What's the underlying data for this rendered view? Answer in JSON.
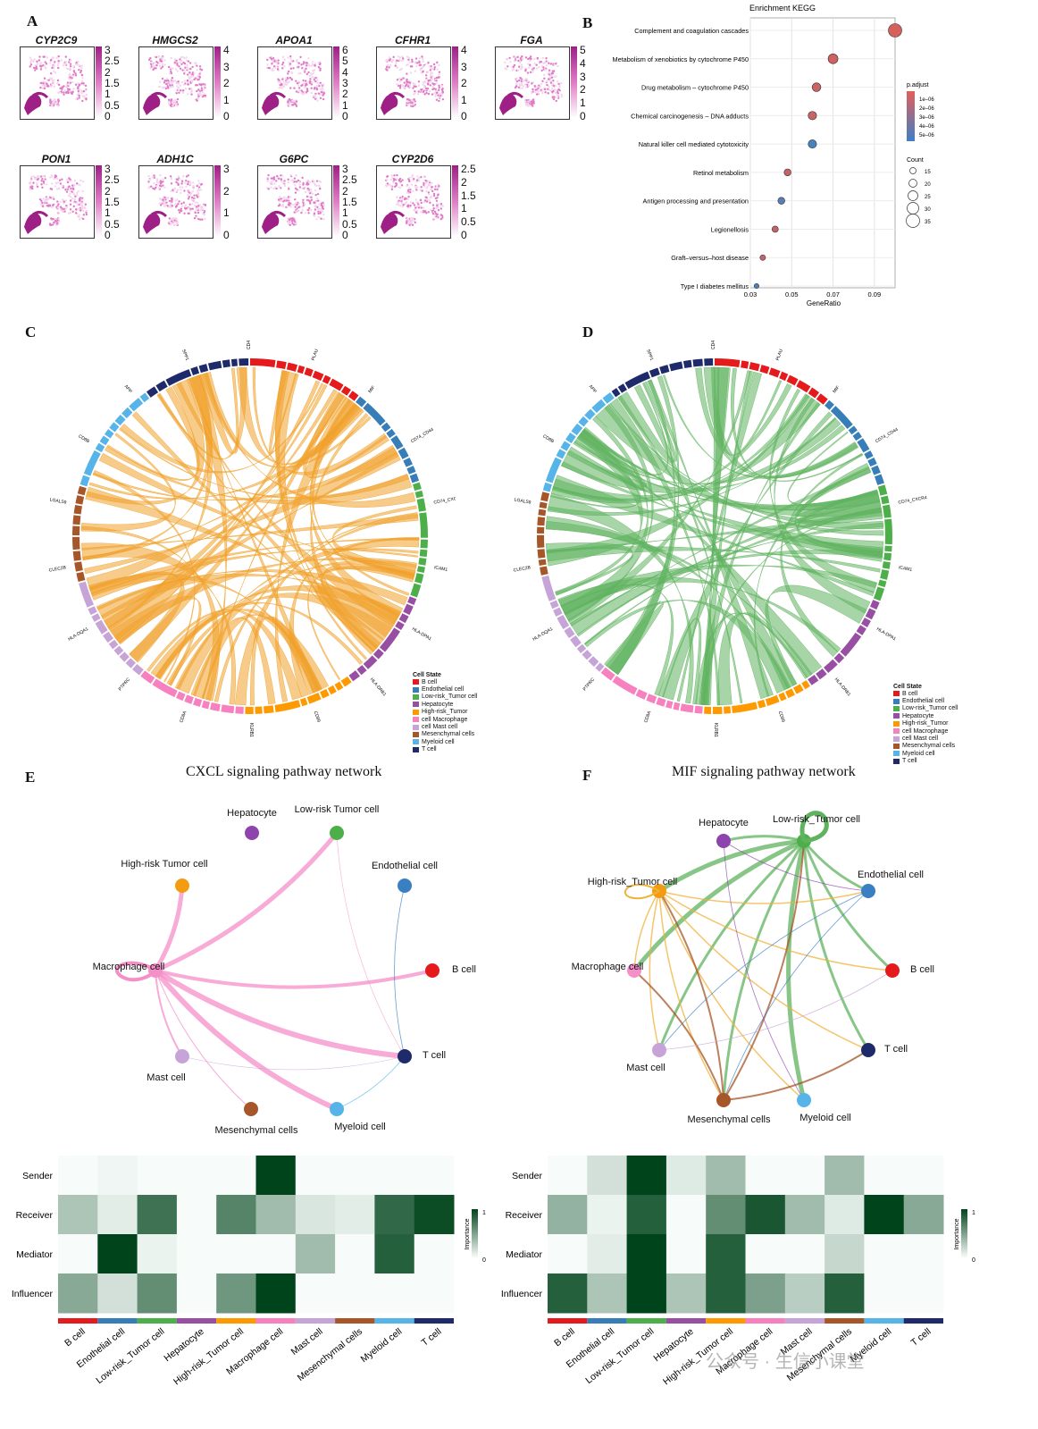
{
  "panels": {
    "A": "A",
    "B": "B",
    "C": "C",
    "D": "D",
    "E": "E",
    "F": "F"
  },
  "umap_panel": {
    "genes": [
      {
        "name": "CYP2C9",
        "ticks": [
          "3",
          "2.5",
          "2",
          "1.5",
          "1",
          "0.5",
          "0"
        ]
      },
      {
        "name": "HMGCS2",
        "ticks": [
          "4",
          "3",
          "2",
          "1",
          "0"
        ]
      },
      {
        "name": "APOA1",
        "ticks": [
          "6",
          "5",
          "4",
          "3",
          "2",
          "1",
          "0"
        ]
      },
      {
        "name": "CFHR1",
        "ticks": [
          "4",
          "3",
          "2",
          "1",
          "0"
        ]
      },
      {
        "name": "FGA",
        "ticks": [
          "5",
          "4",
          "3",
          "2",
          "1",
          "0"
        ]
      },
      {
        "name": "PON1",
        "ticks": [
          "3",
          "2.5",
          "2",
          "1.5",
          "1",
          "0.5",
          "0"
        ]
      },
      {
        "name": "ADH1C",
        "ticks": [
          "3",
          "2",
          "1",
          "0"
        ]
      },
      {
        "name": "G6PC",
        "ticks": [
          "3",
          "2.5",
          "2",
          "1.5",
          "1",
          "0.5",
          "0"
        ]
      },
      {
        "name": "CYP2D6",
        "ticks": [
          "2.5",
          "2",
          "1.5",
          "1",
          "0.5",
          "0"
        ]
      }
    ],
    "colors": {
      "high": "#9e1f86",
      "mid": "#e07bc6",
      "low": "#f4d7ee"
    }
  },
  "chord_panels": {
    "C": {
      "color": "#f0a12a",
      "labels": [
        "CD4",
        "PLAU",
        "MIF",
        "CD74_CD44",
        "CD74_CXCR4",
        "ICAM1",
        "HLA-DPA1",
        "HLA-DRB1",
        "CD99",
        "KLRB1",
        "CD8A",
        "PTPRC",
        "HLA-DQA1",
        "CLEC2B",
        "LGALS9",
        "CD8B",
        "APP",
        "SPP1"
      ]
    },
    "D": {
      "color": "#5fb35f",
      "labels": [
        "CD4",
        "PLAU",
        "MIF",
        "CD74_CD44",
        "CD74_CXCR4",
        "ICAM1",
        "HLA-DPA1",
        "HLA-DRB1",
        "CD99",
        "KLRB1",
        "CD8A",
        "PTPRC",
        "HLA-DQA1",
        "CLEC2B",
        "LGALS9",
        "CD8B",
        "APP",
        "SPP1"
      ]
    }
  },
  "legend": {
    "title": "Cell State",
    "items": [
      {
        "label": "B cell",
        "color": "#e41a1c"
      },
      {
        "label": "Endothelial cell",
        "color": "#377eb8"
      },
      {
        "label": "Low-risk_Tumor cell",
        "color": "#4daf4a"
      },
      {
        "label": "Hepatocyte",
        "color": "#984ea3"
      },
      {
        "label": "High-risk_Tumor",
        "color": "#ff9900"
      },
      {
        "label": "cell Macrophage",
        "color": "#f781bf"
      },
      {
        "label": "cell Mast cell",
        "color": "#c7a4d8"
      },
      {
        "label": "Mesenchymal cells",
        "color": "#a65628"
      },
      {
        "label": "Myeloid cell",
        "color": "#56b4e9"
      },
      {
        "label": "T cell",
        "color": "#1f2a6b"
      }
    ]
  },
  "networks": {
    "E": {
      "title": "CXCL signaling pathway network",
      "edge_color": "#f48fc8",
      "nodes": [
        {
          "id": "hep",
          "label": "Hepatocyte",
          "color": "#8e44ad"
        },
        {
          "id": "low",
          "label": "Low-risk Tumor cell",
          "color": "#4daf4a"
        },
        {
          "id": "endo",
          "label": "Endothelial cell",
          "color": "#3a7fc1"
        },
        {
          "id": "high",
          "label": "High-risk Tumor cell",
          "color": "#f39c12"
        },
        {
          "id": "mac",
          "label": "Macrophage cell",
          "color": "#f48fc8"
        },
        {
          "id": "b",
          "label": "B cell",
          "color": "#e41a1c"
        },
        {
          "id": "t",
          "label": "T cell",
          "color": "#1f2a6b"
        },
        {
          "id": "mast",
          "label": "Mast cell",
          "color": "#c7a4d8"
        },
        {
          "id": "mes",
          "label": "Mesenchymal cells",
          "color": "#a65628"
        },
        {
          "id": "mye",
          "label": "Myeloid cell",
          "color": "#56b4e9"
        }
      ]
    },
    "F": {
      "title": "MIF signaling pathway network",
      "nodes": [
        {
          "id": "hep",
          "label": "Hepatocyte",
          "color": "#8e44ad"
        },
        {
          "id": "low",
          "label": "Low-risk_Tumor cell",
          "color": "#4daf4a"
        },
        {
          "id": "endo",
          "label": "Endothelial cell",
          "color": "#3a7fc1"
        },
        {
          "id": "high",
          "label": "High-risk_Tumor cell",
          "color": "#f39c12"
        },
        {
          "id": "mac",
          "label": "Macrophage cell",
          "color": "#f48fc8"
        },
        {
          "id": "b",
          "label": "B cell",
          "color": "#e41a1c"
        },
        {
          "id": "t",
          "label": "T cell",
          "color": "#1f2a6b"
        },
        {
          "id": "mast",
          "label": "Mast cell",
          "color": "#c7a4d8"
        },
        {
          "id": "mes",
          "label": "Mesenchymal cells",
          "color": "#a65628"
        },
        {
          "id": "mye",
          "label": "Myeloid cell",
          "color": "#56b4e9"
        }
      ]
    }
  },
  "heatmap_legend": {
    "title": "Importance",
    "max": "1",
    "min": "0"
  },
  "watermark": "公众号 · 生信小课堂",
  "chart_data": [
    {
      "id": "kegg_dotplot",
      "type": "scatter",
      "title": "Enrichment KEGG",
      "xlabel": "GeneRatio",
      "xlim": [
        0.03,
        0.1
      ],
      "xticks": [
        "0.03",
        "0.05",
        "0.07",
        "0.09"
      ],
      "points": [
        {
          "term": "Complement and coagulation cascades",
          "x": 0.1,
          "count": 35,
          "padj": 1e-06
        },
        {
          "term": "Metabolism of xenobiotics by cytochrome P450",
          "x": 0.07,
          "count": 25,
          "padj": 1.2e-06
        },
        {
          "term": "Drug metabolism – cytochrome P450",
          "x": 0.062,
          "count": 22,
          "padj": 1.3e-06
        },
        {
          "term": "Chemical carcinogenesis – DNA adducts",
          "x": 0.06,
          "count": 21,
          "padj": 1.4e-06
        },
        {
          "term": "Natural killer cell mediated cytotoxicity",
          "x": 0.06,
          "count": 21,
          "padj": 5e-06
        },
        {
          "term": "Retinol metabolism",
          "x": 0.048,
          "count": 17,
          "padj": 1.5e-06
        },
        {
          "term": "Antigen processing and presentation",
          "x": 0.045,
          "count": 17,
          "padj": 4.5e-06
        },
        {
          "term": "Legionellosis",
          "x": 0.042,
          "count": 15,
          "padj": 1.5e-06
        },
        {
          "term": "Graft–versus–host disease",
          "x": 0.036,
          "count": 13,
          "padj": 1.6e-06
        },
        {
          "term": "Type I diabetes mellitus",
          "x": 0.033,
          "count": 11,
          "padj": 5e-06
        }
      ],
      "legend_padjust": {
        "title": "p.adjust",
        "ticks": [
          "1e–06",
          "2e–06",
          "3e–06",
          "4e–06",
          "5e–06"
        ]
      },
      "legend_count": {
        "title": "Count",
        "values": [
          15,
          20,
          25,
          30,
          35
        ]
      }
    },
    {
      "id": "heatmap_cxcl",
      "type": "heatmap",
      "rows": [
        "Sender",
        "Receiver",
        "Mediator",
        "Influencer"
      ],
      "columns": [
        "B cell",
        "Enothelial cell",
        "Low-risk_Tumor cell",
        "Hepatocyte",
        "High-risk_Tumor cell",
        "Macrophage cell",
        "Mast cell",
        "Mesenchymal cells",
        "Myeloid cell",
        "T cell"
      ],
      "values": [
        [
          0,
          0.03,
          0,
          0,
          0,
          1,
          0,
          0,
          0,
          0
        ],
        [
          0.3,
          0.08,
          0.75,
          0,
          0.65,
          0.35,
          0.12,
          0.08,
          0.8,
          0.95
        ],
        [
          0,
          1,
          0.05,
          0,
          0,
          0,
          0.35,
          0,
          0.85,
          0
        ],
        [
          0.45,
          0.15,
          0.6,
          0,
          0.55,
          1,
          0,
          0,
          0,
          0
        ]
      ]
    },
    {
      "id": "heatmap_mif",
      "type": "heatmap",
      "rows": [
        "Sender",
        "Receiver",
        "Mediator",
        "Influencer"
      ],
      "columns": [
        "B cell",
        "Enothelial cell",
        "Low-risk_Tumor cell",
        "Hepatocyte",
        "High-risk_Tumor cell",
        "Macrophage cell",
        "Mast cell",
        "Mesenchymal cells",
        "Myeloid cell",
        "T cell"
      ],
      "values": [
        [
          0,
          0.15,
          1,
          0.1,
          0.35,
          0,
          0,
          0.35,
          0,
          0
        ],
        [
          0.4,
          0.05,
          0.85,
          0,
          0.6,
          0.9,
          0.35,
          0.1,
          1,
          0.45
        ],
        [
          0,
          0.08,
          1,
          0,
          0.85,
          0,
          0,
          0.2,
          0,
          0
        ],
        [
          0.85,
          0.3,
          1,
          0.3,
          0.85,
          0.5,
          0.25,
          0.85,
          0,
          0
        ]
      ]
    }
  ]
}
